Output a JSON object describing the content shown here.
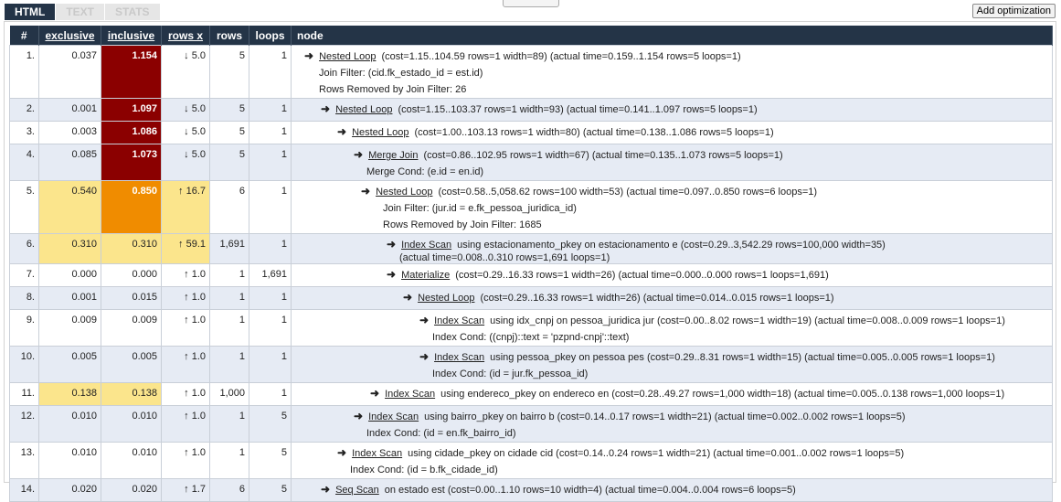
{
  "tabs": [
    "HTML",
    "TEXT",
    "STATS"
  ],
  "add_button": "Add optimization",
  "headers": {
    "num": "#",
    "exclusive": "exclusive",
    "inclusive": "inclusive",
    "rowsx": "rows x",
    "rows": "rows",
    "loops": "loops",
    "node": "node"
  },
  "rows": [
    {
      "n": "1.",
      "exclusive": "0.037",
      "inclusive": "1.154",
      "rowsx": "↓ 5.0",
      "rows": "5",
      "loops": "1",
      "op": "Nested Loop",
      "info": "(cost=1.15..104.59 rows=1 width=89) (actual time=0.159..1.154 rows=5 loops=1)",
      "subs": [
        "Join Filter: (cid.fk_estado_id = est.id)",
        "Rows Removed by Join Filter: 26"
      ]
    },
    {
      "n": "2.",
      "exclusive": "0.001",
      "inclusive": "1.097",
      "rowsx": "↓ 5.0",
      "rows": "5",
      "loops": "1",
      "op": "Nested Loop",
      "info": "(cost=1.15..103.37 rows=1 width=93) (actual time=0.141..1.097 rows=5 loops=1)",
      "subs": []
    },
    {
      "n": "3.",
      "exclusive": "0.003",
      "inclusive": "1.086",
      "rowsx": "↓ 5.0",
      "rows": "5",
      "loops": "1",
      "op": "Nested Loop",
      "info": "(cost=1.00..103.13 rows=1 width=80) (actual time=0.138..1.086 rows=5 loops=1)",
      "subs": []
    },
    {
      "n": "4.",
      "exclusive": "0.085",
      "inclusive": "1.073",
      "rowsx": "↓ 5.0",
      "rows": "5",
      "loops": "1",
      "op": "Merge Join",
      "info": "(cost=0.86..102.95 rows=1 width=67) (actual time=0.135..1.073 rows=5 loops=1)",
      "subs": [
        "Merge Cond: (e.id = en.id)"
      ]
    },
    {
      "n": "5.",
      "exclusive": "0.540",
      "inclusive": "0.850",
      "rowsx": "↑ 16.7",
      "rows": "6",
      "loops": "1",
      "op": "Nested Loop",
      "info": "(cost=0.58..5,058.62 rows=100 width=53) (actual time=0.097..0.850 rows=6 loops=1)",
      "subs": [
        "Join Filter: (jur.id = e.fk_pessoa_juridica_id)",
        "Rows Removed by Join Filter: 1685"
      ]
    },
    {
      "n": "6.",
      "exclusive": "0.310",
      "inclusive": "0.310",
      "rowsx": "↑ 59.1",
      "rows": "1,691",
      "loops": "1",
      "op": "Index Scan",
      "info": "using estacionamento_pkey on estacionamento e (cost=0.29..3,542.29 rows=100,000 width=35)",
      "subs": [
        "(actual time=0.008..0.310 rows=1,691 loops=1)"
      ]
    },
    {
      "n": "7.",
      "exclusive": "0.000",
      "inclusive": "0.000",
      "rowsx": "↑ 1.0",
      "rows": "1",
      "loops": "1,691",
      "op": "Materialize",
      "info": "(cost=0.29..16.33 rows=1 width=26) (actual time=0.000..0.000 rows=1 loops=1,691)",
      "subs": []
    },
    {
      "n": "8.",
      "exclusive": "0.001",
      "inclusive": "0.015",
      "rowsx": "↑ 1.0",
      "rows": "1",
      "loops": "1",
      "op": "Nested Loop",
      "info": "(cost=0.29..16.33 rows=1 width=26) (actual time=0.014..0.015 rows=1 loops=1)",
      "subs": []
    },
    {
      "n": "9.",
      "exclusive": "0.009",
      "inclusive": "0.009",
      "rowsx": "↑ 1.0",
      "rows": "1",
      "loops": "1",
      "op": "Index Scan",
      "info": "using idx_cnpj on pessoa_juridica jur (cost=0.00..8.02 rows=1 width=19) (actual time=0.008..0.009 rows=1 loops=1)",
      "subs": [
        "Index Cond: ((cnpj)::text = 'pzpnd-cnpj'::text)"
      ]
    },
    {
      "n": "10.",
      "exclusive": "0.005",
      "inclusive": "0.005",
      "rowsx": "↑ 1.0",
      "rows": "1",
      "loops": "1",
      "op": "Index Scan",
      "info": "using pessoa_pkey on pessoa pes (cost=0.29..8.31 rows=1 width=15) (actual time=0.005..0.005 rows=1 loops=1)",
      "subs": [
        "Index Cond: (id = jur.fk_pessoa_id)"
      ]
    },
    {
      "n": "11.",
      "exclusive": "0.138",
      "inclusive": "0.138",
      "rowsx": "↑ 1.0",
      "rows": "1,000",
      "loops": "1",
      "op": "Index Scan",
      "info": "using endereco_pkey on endereco en (cost=0.28..49.27 rows=1,000 width=18) (actual time=0.005..0.138 rows=1,000 loops=1)",
      "subs": []
    },
    {
      "n": "12.",
      "exclusive": "0.010",
      "inclusive": "0.010",
      "rowsx": "↑ 1.0",
      "rows": "1",
      "loops": "5",
      "op": "Index Scan",
      "info": "using bairro_pkey on bairro b (cost=0.14..0.17 rows=1 width=21) (actual time=0.002..0.002 rows=1 loops=5)",
      "subs": [
        "Index Cond: (id = en.fk_bairro_id)"
      ]
    },
    {
      "n": "13.",
      "exclusive": "0.010",
      "inclusive": "0.010",
      "rowsx": "↑ 1.0",
      "rows": "1",
      "loops": "5",
      "op": "Index Scan",
      "info": "using cidade_pkey on cidade cid (cost=0.14..0.24 rows=1 width=21) (actual time=0.001..0.002 rows=1 loops=5)",
      "subs": [
        "Index Cond: (id = b.fk_cidade_id)"
      ]
    },
    {
      "n": "14.",
      "exclusive": "0.020",
      "inclusive": "0.020",
      "rowsx": "↑ 1.7",
      "rows": "6",
      "loops": "5",
      "op": "Seq Scan",
      "info": "on estado est (cost=0.00..1.10 rows=10 width=4) (actual time=0.004..0.004 rows=6 loops=5)",
      "subs": []
    }
  ]
}
